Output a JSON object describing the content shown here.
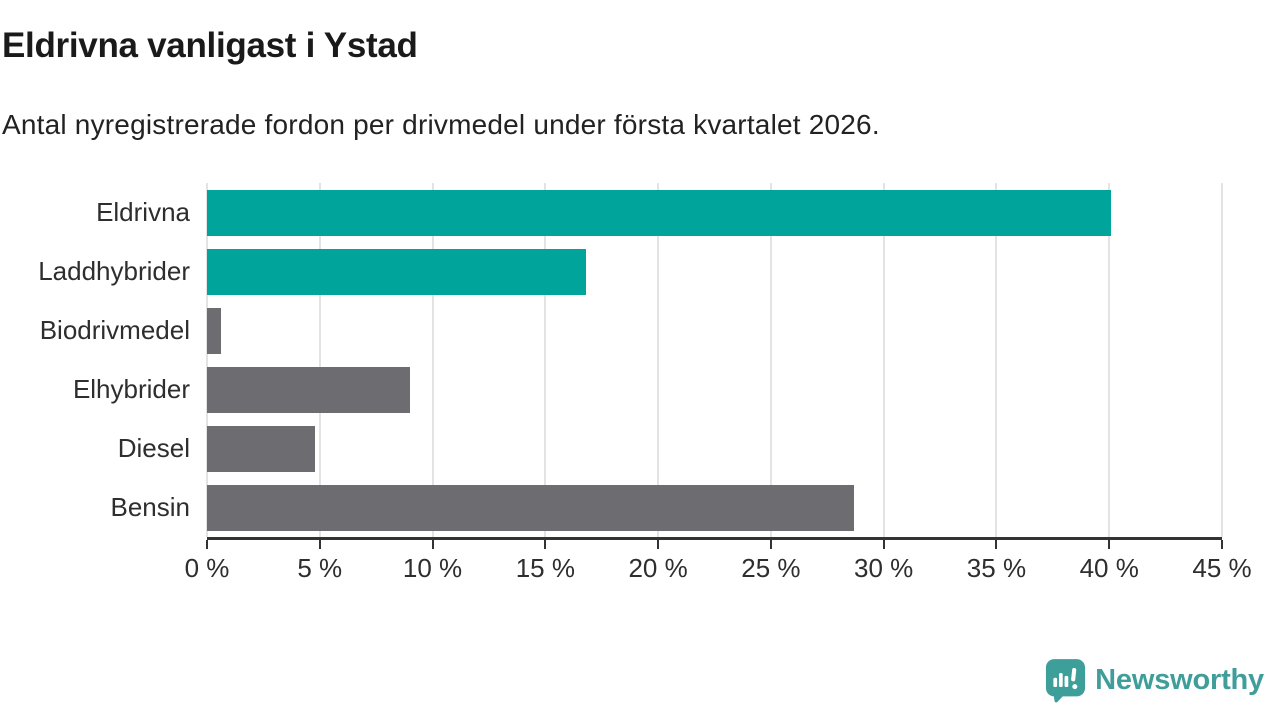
{
  "header": {
    "title": "Eldrivna vanligast i Ystad",
    "subtitle": "Antal nyregistrerade fordon per drivmedel under första kvartalet 2026."
  },
  "chart_data": {
    "type": "bar",
    "orientation": "horizontal",
    "title": "Eldrivna vanligast i Ystad",
    "subtitle": "Antal nyregistrerade fordon per drivmedel under första kvartalet 2026.",
    "categories": [
      "Eldrivna",
      "Laddhybrider",
      "Biodrivmedel",
      "Elhybrider",
      "Diesel",
      "Bensin"
    ],
    "values": [
      40.1,
      16.8,
      0.6,
      9.0,
      4.8,
      28.7
    ],
    "unit": "%",
    "bar_colors": [
      "#00A49B",
      "#00A49B",
      "#6C6C71",
      "#6C6C71",
      "#6C6C71",
      "#6C6C71"
    ],
    "accent_color": "#00A49B",
    "neutral_color": "#6C6C71",
    "xlim": [
      0,
      45
    ],
    "x_tick_values": [
      0,
      5,
      10,
      15,
      20,
      25,
      30,
      35,
      40,
      45
    ],
    "x_tick_labels": [
      "0 %",
      "5 %",
      "10 %",
      "15 %",
      "20 %",
      "25 %",
      "30 %",
      "35 %",
      "40 %",
      "45 %"
    ],
    "grid": "vertical",
    "gridline_color": "#e3e3e3",
    "axis_color": "#333333",
    "legend": "none"
  },
  "footer": {
    "brand": "Newsworthy",
    "brand_color": "#3F9E99",
    "logo_icon": "speech-bubble-bar-chart-exclamation"
  }
}
